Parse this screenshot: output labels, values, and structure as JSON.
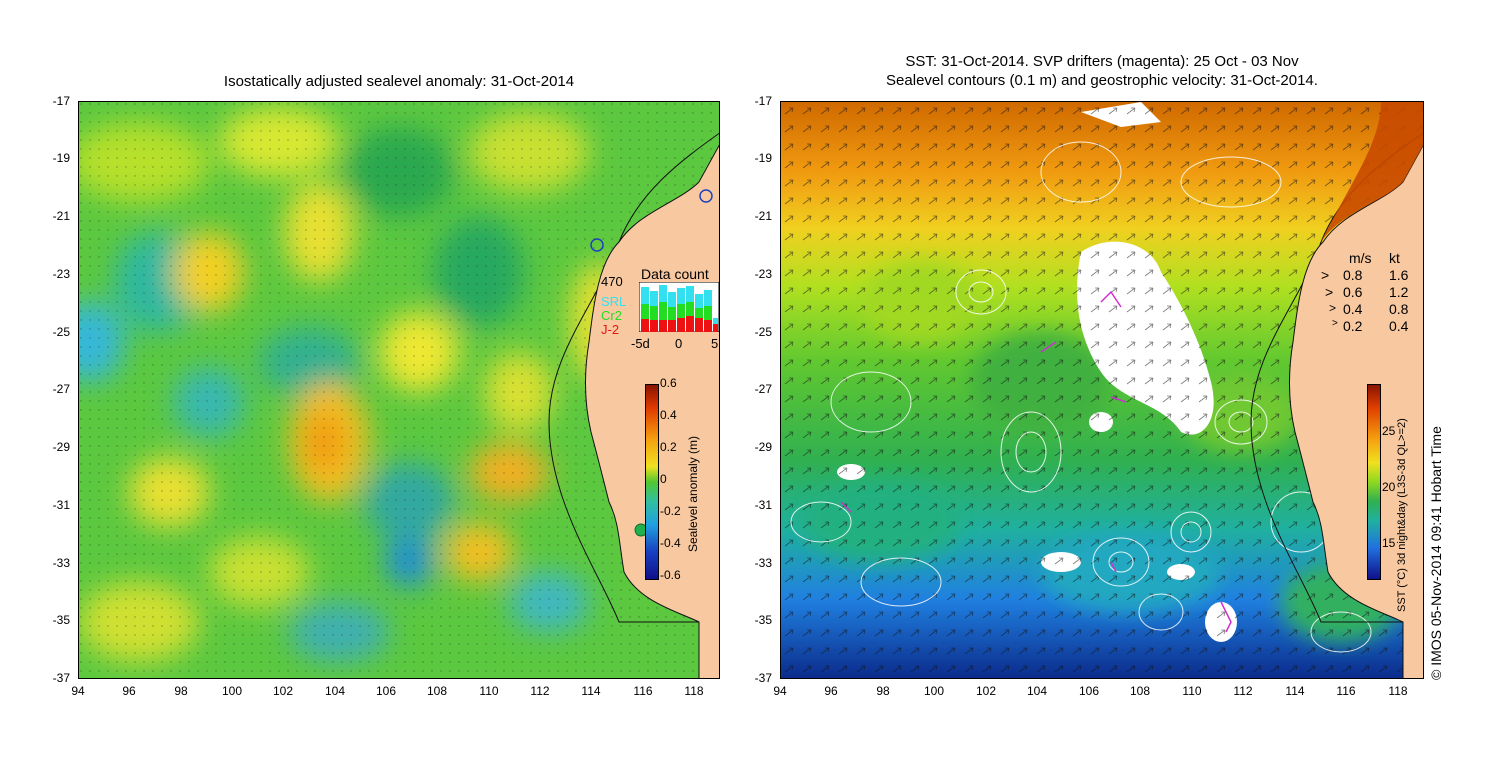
{
  "left_panel": {
    "title": "Isostatically adjusted sealevel anomaly: 31-Oct-2014",
    "colorbar": {
      "label": "Sealevel anomaly (m)",
      "ticks": [
        "0.6",
        "0.4",
        "0.2",
        "0",
        "-0.2",
        "-0.4",
        "-0.6"
      ]
    },
    "inset": {
      "count": "470",
      "title": "Data count",
      "missions": [
        {
          "label": "SRL",
          "color": "#33e0f0"
        },
        {
          "label": "Cr2",
          "color": "#22dd22"
        },
        {
          "label": "J-2",
          "color": "#ee1111"
        }
      ],
      "x_ticks": [
        "-5d",
        "0",
        "5"
      ]
    }
  },
  "right_panel": {
    "title_line1": "SST: 31-Oct-2014. SVP drifters (magenta): 25 Oct - 03 Nov",
    "title_line2": "Sealevel contours (0.1 m) and geostrophic velocity: 31-Oct-2014.",
    "colorbar": {
      "label": "SST (°C) 3d night&day (L3S-3d QL>=2)",
      "ticks": [
        "25",
        "20",
        "15"
      ]
    },
    "velocity_legend": {
      "header_ms": "m/s",
      "header_kt": "kt",
      "rows": [
        {
          "ms": "0.8",
          "kt": "1.6"
        },
        {
          "ms": "0.6",
          "kt": "1.2"
        },
        {
          "ms": "0.4",
          "kt": "0.8"
        },
        {
          "ms": "0.2",
          "kt": "0.4"
        }
      ]
    }
  },
  "axes": {
    "y_ticks": [
      "-17",
      "-19",
      "-21",
      "-23",
      "-25",
      "-27",
      "-29",
      "-31",
      "-33",
      "-35",
      "-37"
    ],
    "x_ticks": [
      "94",
      "96",
      "98",
      "100",
      "102",
      "104",
      "106",
      "108",
      "110",
      "112",
      "114",
      "116",
      "118"
    ]
  },
  "copyright": "© IMOS 05-Nov-2014 09:41 Hobart Time",
  "colors": {
    "land": "#f8c9a0",
    "sla_low": "#1a1a9a",
    "sla_mid": "#20b050",
    "sla_high": "#a02000",
    "sst_cold": "#0a2a8a",
    "sst_warm": "#d06000"
  }
}
